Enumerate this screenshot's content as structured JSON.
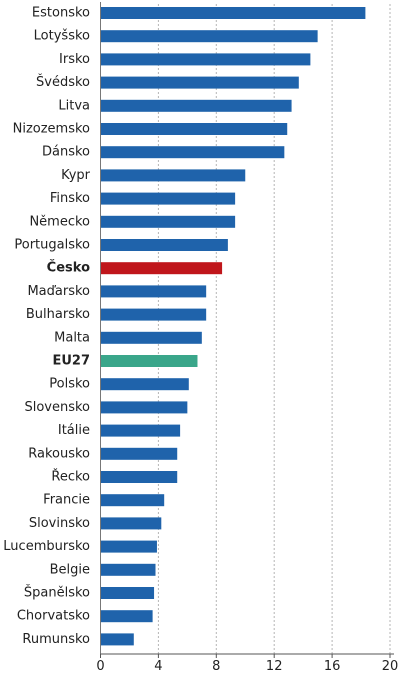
{
  "chart_data": {
    "type": "bar",
    "orientation": "horizontal",
    "title": "",
    "xlabel": "",
    "ylabel": "",
    "xlim": [
      0,
      20
    ],
    "xticks": [
      0,
      4,
      8,
      12,
      16,
      20
    ],
    "grid": "vertical-dashed",
    "colors": {
      "default": "#1f63ab",
      "highlight": "#c0161b",
      "eu": "#3aa68a"
    },
    "categories": [
      "Estonsko",
      "Lotyšsko",
      "Irsko",
      "Švédsko",
      "Litva",
      "Nizozemsko",
      "Dánsko",
      "Kypr",
      "Finsko",
      "Německo",
      "Portugalsko",
      "Česko",
      "Maďarsko",
      "Bulharsko",
      "Malta",
      "EU27",
      "Polsko",
      "Slovensko",
      "Itálie",
      "Rakousko",
      "Řecko",
      "Francie",
      "Slovinsko",
      "Lucembursko",
      "Belgie",
      "Španělsko",
      "Chorvatsko",
      "Rumunsko"
    ],
    "values": [
      18.3,
      15.0,
      14.5,
      13.7,
      13.2,
      12.9,
      12.7,
      10.0,
      9.3,
      9.3,
      8.8,
      8.4,
      7.3,
      7.3,
      7.0,
      6.7,
      6.1,
      6.0,
      5.5,
      5.3,
      5.3,
      4.4,
      4.2,
      3.9,
      3.8,
      3.7,
      3.6,
      2.3
    ],
    "highlight": {
      "Česko": "highlight",
      "EU27": "eu"
    },
    "bold_categories": [
      "Česko",
      "EU27"
    ]
  }
}
